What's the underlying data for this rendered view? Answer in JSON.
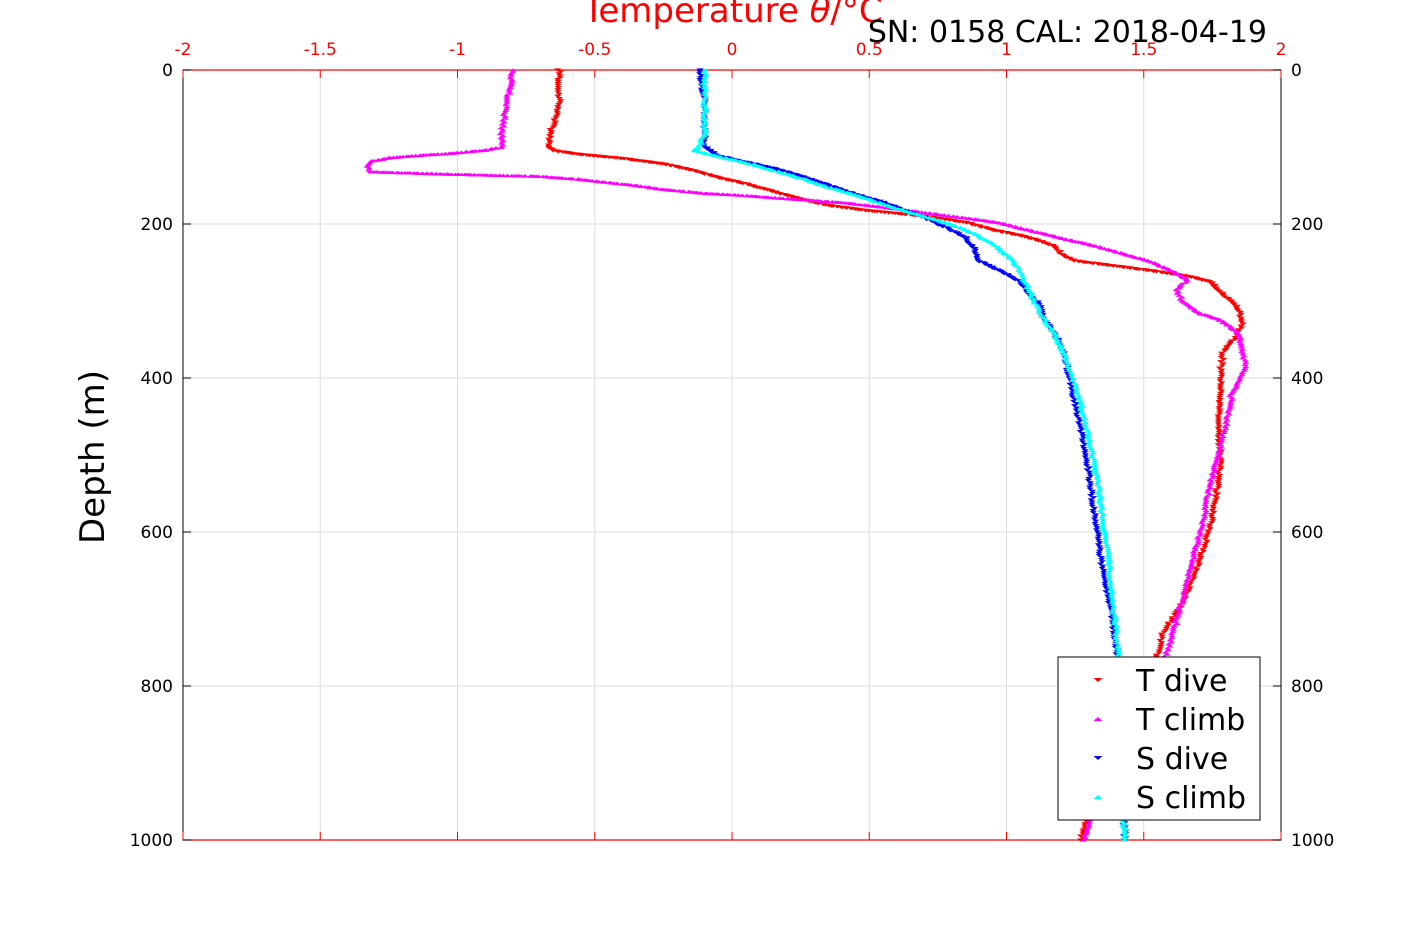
{
  "header": {
    "title": "SN: 0158  CAL: 2018-04-19"
  },
  "chart_data": {
    "type": "scatter",
    "xlabel_top_prefix": "Temperature ",
    "xlabel_top_symbol": "θ",
    "xlabel_top_suffix": "/°C",
    "ylabel": "Depth (m)",
    "x_axis_color": "#ff0000",
    "xlim": [
      -2,
      2
    ],
    "ylim": [
      0,
      1000
    ],
    "y_reversed": true,
    "x_ticks": [
      -2,
      -1.5,
      -1,
      -0.5,
      0,
      0.5,
      1,
      1.5,
      2
    ],
    "x_tick_labels": [
      "-2",
      "-1.5",
      "-1",
      "-0.5",
      "0",
      "0.5",
      "1",
      "1.5",
      "2"
    ],
    "y_ticks": [
      0,
      200,
      400,
      600,
      800,
      1000
    ],
    "y_tick_labels": [
      "0",
      "200",
      "400",
      "600",
      "800",
      "1000"
    ],
    "grid": true,
    "legend_position": "bottom-right",
    "series": [
      {
        "name": "T dive",
        "color": "#ff0000",
        "marker": "triangle-down",
        "points": [
          [
            -0.63,
            0
          ],
          [
            -0.63,
            20
          ],
          [
            -0.63,
            40
          ],
          [
            -0.64,
            60
          ],
          [
            -0.66,
            80
          ],
          [
            -0.67,
            100
          ],
          [
            -0.65,
            105
          ],
          [
            -0.55,
            110
          ],
          [
            -0.4,
            115
          ],
          [
            -0.25,
            122
          ],
          [
            -0.15,
            130
          ],
          [
            -0.05,
            140
          ],
          [
            0.05,
            148
          ],
          [
            0.15,
            158
          ],
          [
            0.25,
            168
          ],
          [
            0.35,
            176
          ],
          [
            0.5,
            183
          ],
          [
            0.7,
            190
          ],
          [
            0.85,
            198
          ],
          [
            0.95,
            208
          ],
          [
            1.05,
            215
          ],
          [
            1.12,
            222
          ],
          [
            1.18,
            230
          ],
          [
            1.2,
            240
          ],
          [
            1.25,
            248
          ],
          [
            1.4,
            255
          ],
          [
            1.55,
            262
          ],
          [
            1.66,
            268
          ],
          [
            1.74,
            275
          ],
          [
            1.77,
            285
          ],
          [
            1.8,
            295
          ],
          [
            1.83,
            305
          ],
          [
            1.85,
            315
          ],
          [
            1.86,
            330
          ],
          [
            1.83,
            350
          ],
          [
            1.79,
            365
          ],
          [
            1.78,
            390
          ],
          [
            1.78,
            420
          ],
          [
            1.77,
            460
          ],
          [
            1.78,
            500
          ],
          [
            1.77,
            540
          ],
          [
            1.75,
            580
          ],
          [
            1.72,
            620
          ],
          [
            1.68,
            660
          ],
          [
            1.63,
            700
          ],
          [
            1.57,
            730
          ],
          [
            1.55,
            760
          ],
          [
            1.5,
            800
          ],
          [
            1.43,
            850
          ],
          [
            1.37,
            900
          ],
          [
            1.31,
            950
          ],
          [
            1.27,
            1000
          ]
        ]
      },
      {
        "name": "T climb",
        "color": "#ff00ff",
        "marker": "triangle-up",
        "points": [
          [
            -0.8,
            0
          ],
          [
            -0.81,
            20
          ],
          [
            -0.82,
            40
          ],
          [
            -0.83,
            60
          ],
          [
            -0.84,
            80
          ],
          [
            -0.84,
            100
          ],
          [
            -0.9,
            104
          ],
          [
            -1.02,
            108
          ],
          [
            -1.15,
            111
          ],
          [
            -1.25,
            114
          ],
          [
            -1.31,
            118
          ],
          [
            -1.33,
            125
          ],
          [
            -1.32,
            132
          ],
          [
            -1.05,
            135
          ],
          [
            -0.7,
            138
          ],
          [
            -0.55,
            142
          ],
          [
            -0.45,
            146
          ],
          [
            -0.35,
            150
          ],
          [
            -0.25,
            155
          ],
          [
            -0.1,
            160
          ],
          [
            0.05,
            163
          ],
          [
            0.2,
            167
          ],
          [
            0.4,
            172
          ],
          [
            0.55,
            178
          ],
          [
            0.7,
            185
          ],
          [
            0.85,
            192
          ],
          [
            0.97,
            198
          ],
          [
            1.05,
            205
          ],
          [
            1.13,
            212
          ],
          [
            1.22,
            220
          ],
          [
            1.32,
            228
          ],
          [
            1.42,
            238
          ],
          [
            1.52,
            248
          ],
          [
            1.6,
            260
          ],
          [
            1.66,
            272
          ],
          [
            1.62,
            285
          ],
          [
            1.64,
            300
          ],
          [
            1.7,
            315
          ],
          [
            1.78,
            325
          ],
          [
            1.84,
            340
          ],
          [
            1.86,
            360
          ],
          [
            1.87,
            385
          ],
          [
            1.82,
            420
          ],
          [
            1.8,
            460
          ],
          [
            1.77,
            500
          ],
          [
            1.74,
            540
          ],
          [
            1.72,
            580
          ],
          [
            1.69,
            620
          ],
          [
            1.66,
            660
          ],
          [
            1.63,
            700
          ],
          [
            1.6,
            740
          ],
          [
            1.56,
            780
          ],
          [
            1.5,
            830
          ],
          [
            1.42,
            880
          ],
          [
            1.35,
            930
          ],
          [
            1.28,
            1000
          ]
        ]
      },
      {
        "name": "S dive",
        "color": "#0000ff",
        "marker": "triangle-down",
        "points": [
          [
            -0.12,
            0
          ],
          [
            -0.11,
            20
          ],
          [
            -0.1,
            40
          ],
          [
            -0.1,
            60
          ],
          [
            -0.1,
            80
          ],
          [
            -0.1,
            100
          ],
          [
            -0.05,
            112
          ],
          [
            0.05,
            120
          ],
          [
            0.15,
            128
          ],
          [
            0.25,
            138
          ],
          [
            0.35,
            150
          ],
          [
            0.45,
            162
          ],
          [
            0.55,
            172
          ],
          [
            0.62,
            182
          ],
          [
            0.7,
            192
          ],
          [
            0.78,
            205
          ],
          [
            0.85,
            218
          ],
          [
            0.88,
            232
          ],
          [
            0.9,
            248
          ],
          [
            0.98,
            262
          ],
          [
            1.05,
            275
          ],
          [
            1.08,
            290
          ],
          [
            1.12,
            305
          ],
          [
            1.14,
            325
          ],
          [
            1.18,
            345
          ],
          [
            1.21,
            370
          ],
          [
            1.23,
            400
          ],
          [
            1.26,
            450
          ],
          [
            1.29,
            500
          ],
          [
            1.31,
            550
          ],
          [
            1.33,
            600
          ],
          [
            1.35,
            650
          ],
          [
            1.38,
            700
          ],
          [
            1.4,
            750
          ],
          [
            1.41,
            800
          ],
          [
            1.42,
            850
          ],
          [
            1.42,
            900
          ],
          [
            1.43,
            950
          ],
          [
            1.43,
            1000
          ]
        ]
      },
      {
        "name": "S climb",
        "color": "#00ffff",
        "marker": "triangle-up",
        "points": [
          [
            -0.1,
            0
          ],
          [
            -0.1,
            20
          ],
          [
            -0.1,
            40
          ],
          [
            -0.1,
            60
          ],
          [
            -0.1,
            80
          ],
          [
            -0.12,
            100
          ],
          [
            -0.14,
            104
          ],
          [
            -0.05,
            112
          ],
          [
            0.05,
            120
          ],
          [
            0.15,
            130
          ],
          [
            0.25,
            140
          ],
          [
            0.35,
            152
          ],
          [
            0.45,
            162
          ],
          [
            0.52,
            170
          ],
          [
            0.6,
            180
          ],
          [
            0.7,
            190
          ],
          [
            0.8,
            200
          ],
          [
            0.88,
            212
          ],
          [
            0.95,
            225
          ],
          [
            1.0,
            240
          ],
          [
            1.04,
            255
          ],
          [
            1.06,
            270
          ],
          [
            1.08,
            285
          ],
          [
            1.1,
            300
          ],
          [
            1.13,
            320
          ],
          [
            1.17,
            340
          ],
          [
            1.2,
            360
          ],
          [
            1.23,
            390
          ],
          [
            1.27,
            430
          ],
          [
            1.3,
            480
          ],
          [
            1.33,
            530
          ],
          [
            1.35,
            580
          ],
          [
            1.37,
            630
          ],
          [
            1.38,
            680
          ],
          [
            1.4,
            730
          ],
          [
            1.41,
            780
          ],
          [
            1.42,
            830
          ],
          [
            1.42,
            880
          ],
          [
            1.42,
            940
          ],
          [
            1.43,
            1000
          ]
        ]
      }
    ]
  }
}
